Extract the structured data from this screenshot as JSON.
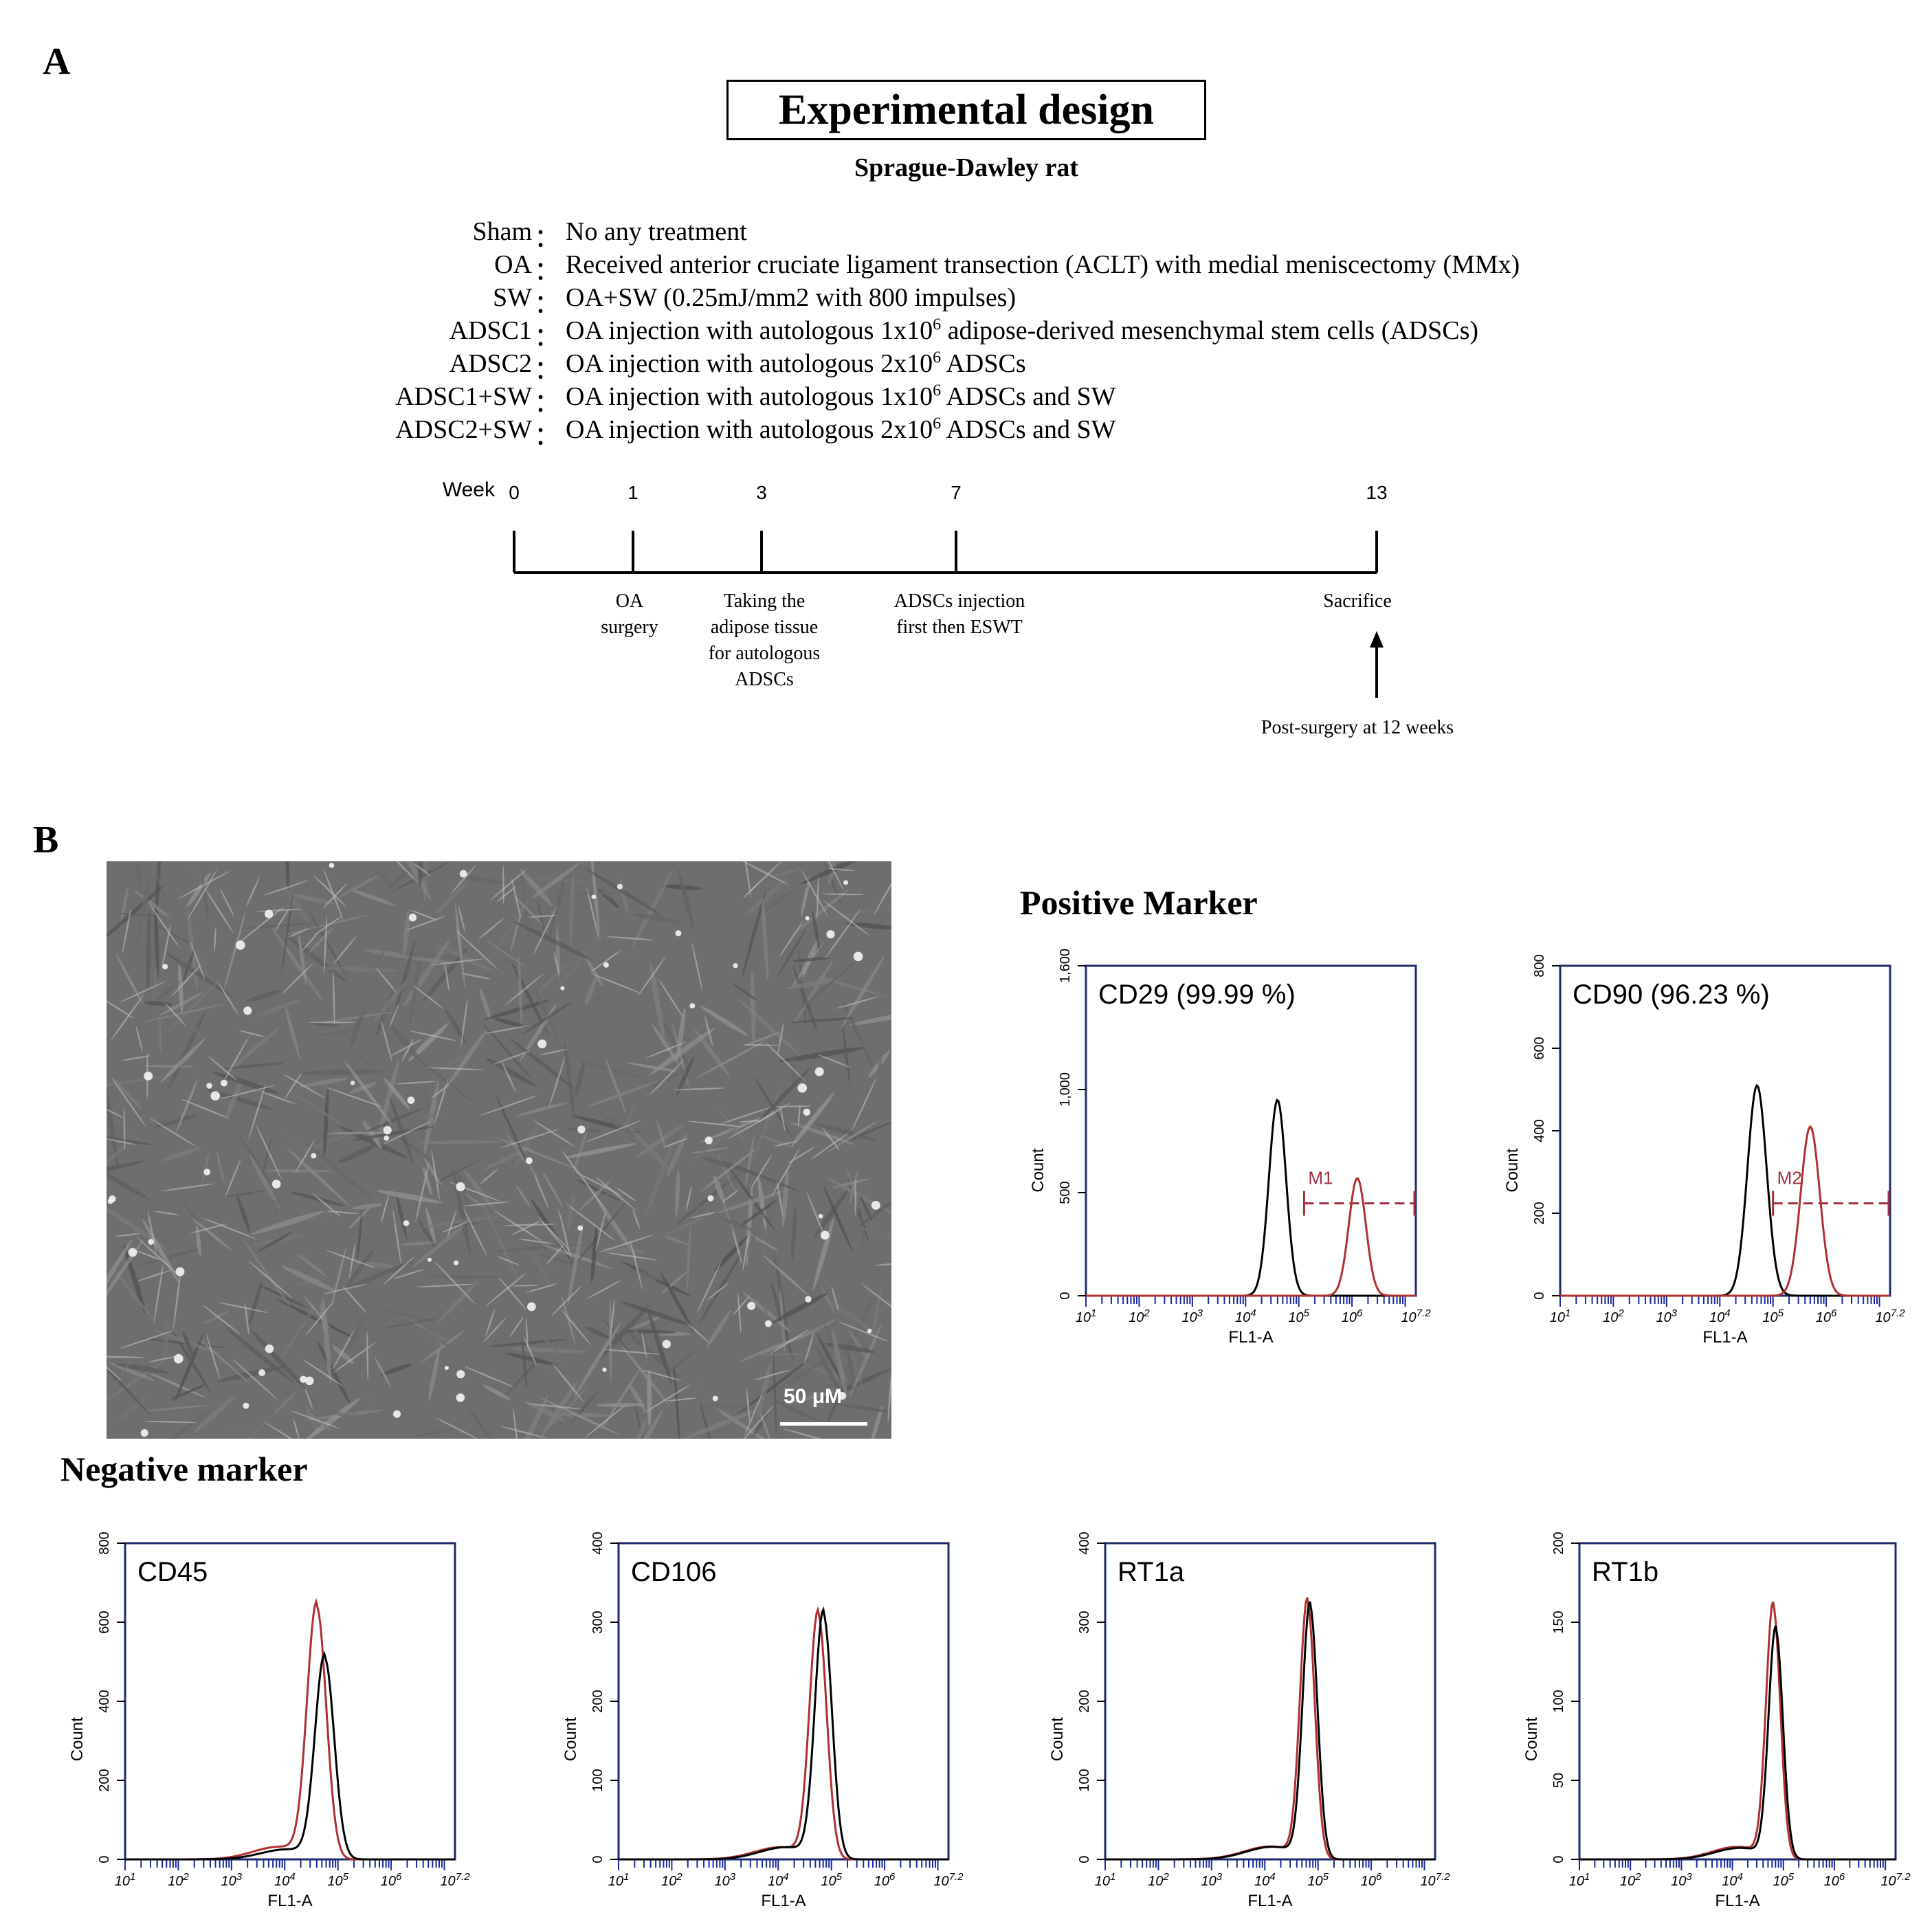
{
  "panelA": {
    "letter": "A",
    "title": "Experimental design",
    "subtitle": "Sprague-Dawley rat",
    "groups": [
      {
        "key": "Sham",
        "sep": "：",
        "desc_pre": "No any treatment",
        "sup": "",
        "desc_post": ""
      },
      {
        "key": "OA",
        "sep": "：",
        "desc_pre": "Received  anterior cruciate ligament transection (ACLT) with medial meniscectomy (MMx)",
        "sup": "",
        "desc_post": ""
      },
      {
        "key": "SW",
        "sep": "：",
        "desc_pre": "OA+SW (0.25mJ/mm2 with 800 impulses)",
        "sup": "",
        "desc_post": ""
      },
      {
        "key": "ADSC1",
        "sep": "：",
        "desc_pre": "OA injection with autologous 1x10",
        "sup": "6",
        "desc_post": " adipose-derived mesenchymal stem cells (ADSCs)"
      },
      {
        "key": "ADSC2",
        "sep": "：",
        "desc_pre": "OA injection with autologous 2x10",
        "sup": "6",
        "desc_post": " ADSCs"
      },
      {
        "key": "ADSC1+SW",
        "sep": "：",
        "desc_pre": "OA injection with autologous 1x10",
        "sup": "6",
        "desc_post": " ADSCs and SW"
      },
      {
        "key": "ADSC2+SW",
        "sep": "：",
        "desc_pre": "OA injection with autologous 2x10",
        "sup": "6",
        "desc_post": " ADSCs and SW"
      }
    ],
    "timeline": {
      "week_label": "Week",
      "weeks": [
        "0",
        "1",
        "3",
        "7",
        "13"
      ],
      "events": [
        {
          "week": 1,
          "lines": [
            "OA",
            "surgery"
          ]
        },
        {
          "week": 3,
          "lines": [
            "Taking the",
            "adipose tissue",
            "for autologous",
            "ADSCs"
          ]
        },
        {
          "week": 7,
          "lines": [
            "ADSCs injection",
            "first then ESWT"
          ]
        },
        {
          "week": 13,
          "lines": [
            "Sacrifice"
          ]
        }
      ],
      "post_note": "Post-surgery  at 12 weeks"
    }
  },
  "panelB": {
    "letter": "B",
    "scale_label": "50 μM",
    "positive_title": "Positive Marker",
    "negative_title": "Negative marker"
  },
  "chart_data": [
    {
      "type": "line",
      "title": "CD29 (99.99 %)",
      "xlabel": "FL1-A",
      "ylabel": "Count",
      "yticks": [
        "0",
        "500",
        "1,000",
        "1,600"
      ],
      "ylim": [
        0,
        1600
      ],
      "xticks": [
        "10^1",
        "10^2",
        "10^3",
        "10^4",
        "10^5",
        "10^6",
        "10^7.2"
      ],
      "marker": {
        "name": "M1",
        "from": "10^5.1",
        "to": "10^7.2"
      },
      "series": [
        {
          "color": "#000000",
          "peak_x": "10^4.6",
          "peak": 950
        },
        {
          "color": "#b03030",
          "peak_x": "10^6.1",
          "peak": 570
        }
      ]
    },
    {
      "type": "line",
      "title": "CD90 (96.23 %)",
      "xlabel": "FL1-A",
      "ylabel": "Count",
      "yticks": [
        "0",
        "200",
        "400",
        "600",
        "800"
      ],
      "ylim": [
        0,
        800
      ],
      "xticks": [
        "10^1",
        "10^2",
        "10^3",
        "10^4",
        "10^5",
        "10^6",
        "10^7.2"
      ],
      "marker": {
        "name": "M2",
        "from": "10^5.0",
        "to": "10^7.2"
      },
      "series": [
        {
          "color": "#000000",
          "peak_x": "10^4.7",
          "peak": 510
        },
        {
          "color": "#b03030",
          "peak_x": "10^5.7",
          "peak": 410
        }
      ]
    },
    {
      "type": "line",
      "title": "CD45",
      "xlabel": "FL1-A",
      "ylabel": "Count",
      "yticks": [
        "0",
        "200",
        "400",
        "600",
        "800"
      ],
      "ylim": [
        0,
        800
      ],
      "xticks": [
        "10^1",
        "10^2",
        "10^3",
        "10^4",
        "10^5",
        "10^6",
        "10^7.2"
      ],
      "series": [
        {
          "color": "#b03030",
          "peak_x": "10^4.6",
          "peak": 640
        },
        {
          "color": "#000000",
          "peak_x": "10^4.75",
          "peak": 510
        }
      ]
    },
    {
      "type": "line",
      "title": "CD106",
      "xlabel": "FL1-A",
      "ylabel": "Count",
      "yticks": [
        "0",
        "100",
        "200",
        "300",
        "400"
      ],
      "ylim": [
        0,
        400
      ],
      "xticks": [
        "10^1",
        "10^2",
        "10^3",
        "10^4",
        "10^5",
        "10^6",
        "10^7.2"
      ],
      "series": [
        {
          "color": "#b03030",
          "peak_x": "10^4.75",
          "peak": 310
        },
        {
          "color": "#000000",
          "peak_x": "10^4.85",
          "peak": 310
        }
      ]
    },
    {
      "type": "line",
      "title": "RT1a",
      "xlabel": "FL1-A",
      "ylabel": "Count",
      "yticks": [
        "0",
        "100",
        "200",
        "300",
        "400"
      ],
      "ylim": [
        0,
        400
      ],
      "xticks": [
        "10^1",
        "10^2",
        "10^3",
        "10^4",
        "10^5",
        "10^6",
        "10^7.2"
      ],
      "series": [
        {
          "color": "#b03030",
          "peak_x": "10^4.8",
          "peak": 325
        },
        {
          "color": "#000000",
          "peak_x": "10^4.85",
          "peak": 320
        }
      ]
    },
    {
      "type": "line",
      "title": "RT1b",
      "xlabel": "FL1-A",
      "ylabel": "Count",
      "yticks": [
        "0",
        "50",
        "100",
        "150",
        "200"
      ],
      "ylim": [
        0,
        200
      ],
      "xticks": [
        "10^1",
        "10^2",
        "10^3",
        "10^4",
        "10^5",
        "10^6",
        "10^7.2"
      ],
      "series": [
        {
          "color": "#b03030",
          "peak_x": "10^4.8",
          "peak": 160
        },
        {
          "color": "#000000",
          "peak_x": "10^4.85",
          "peak": 145
        }
      ]
    }
  ]
}
